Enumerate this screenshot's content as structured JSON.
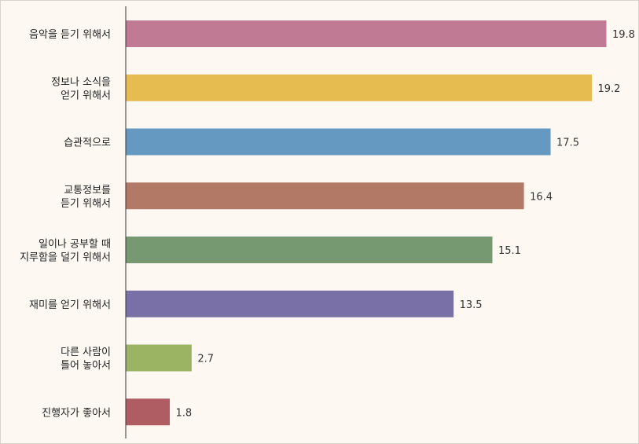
{
  "chart_data": {
    "type": "bar",
    "orientation": "horizontal",
    "categories": [
      [
        "음악을 듣기 위해서"
      ],
      [
        "정보나 소식을",
        "얻기 위해서"
      ],
      [
        "습관적으로"
      ],
      [
        "교통정보를",
        "듣기 위해서"
      ],
      [
        "일이나 공부할 때",
        "지루함을 덜기 위해서"
      ],
      [
        "재미를 얻기 위해서"
      ],
      [
        "다른 사람이",
        "틀어 놓아서"
      ],
      [
        "진행자가 좋아서"
      ]
    ],
    "values": [
      19.8,
      19.2,
      17.5,
      16.4,
      15.1,
      13.5,
      2.7,
      1.8
    ],
    "value_labels": [
      "19.8",
      "19.2",
      "17.5",
      "16.4",
      "15.1",
      "13.5",
      "2.7",
      "1.8"
    ],
    "colors": [
      "#c07a94",
      "#e6bb4f",
      "#6699c2",
      "#b27a66",
      "#779972",
      "#7970a7",
      "#9bb464",
      "#b05c63"
    ],
    "xlim": [
      0,
      19.8
    ],
    "title": "",
    "xlabel": "",
    "ylabel": "",
    "grid": false,
    "legend": "none"
  }
}
